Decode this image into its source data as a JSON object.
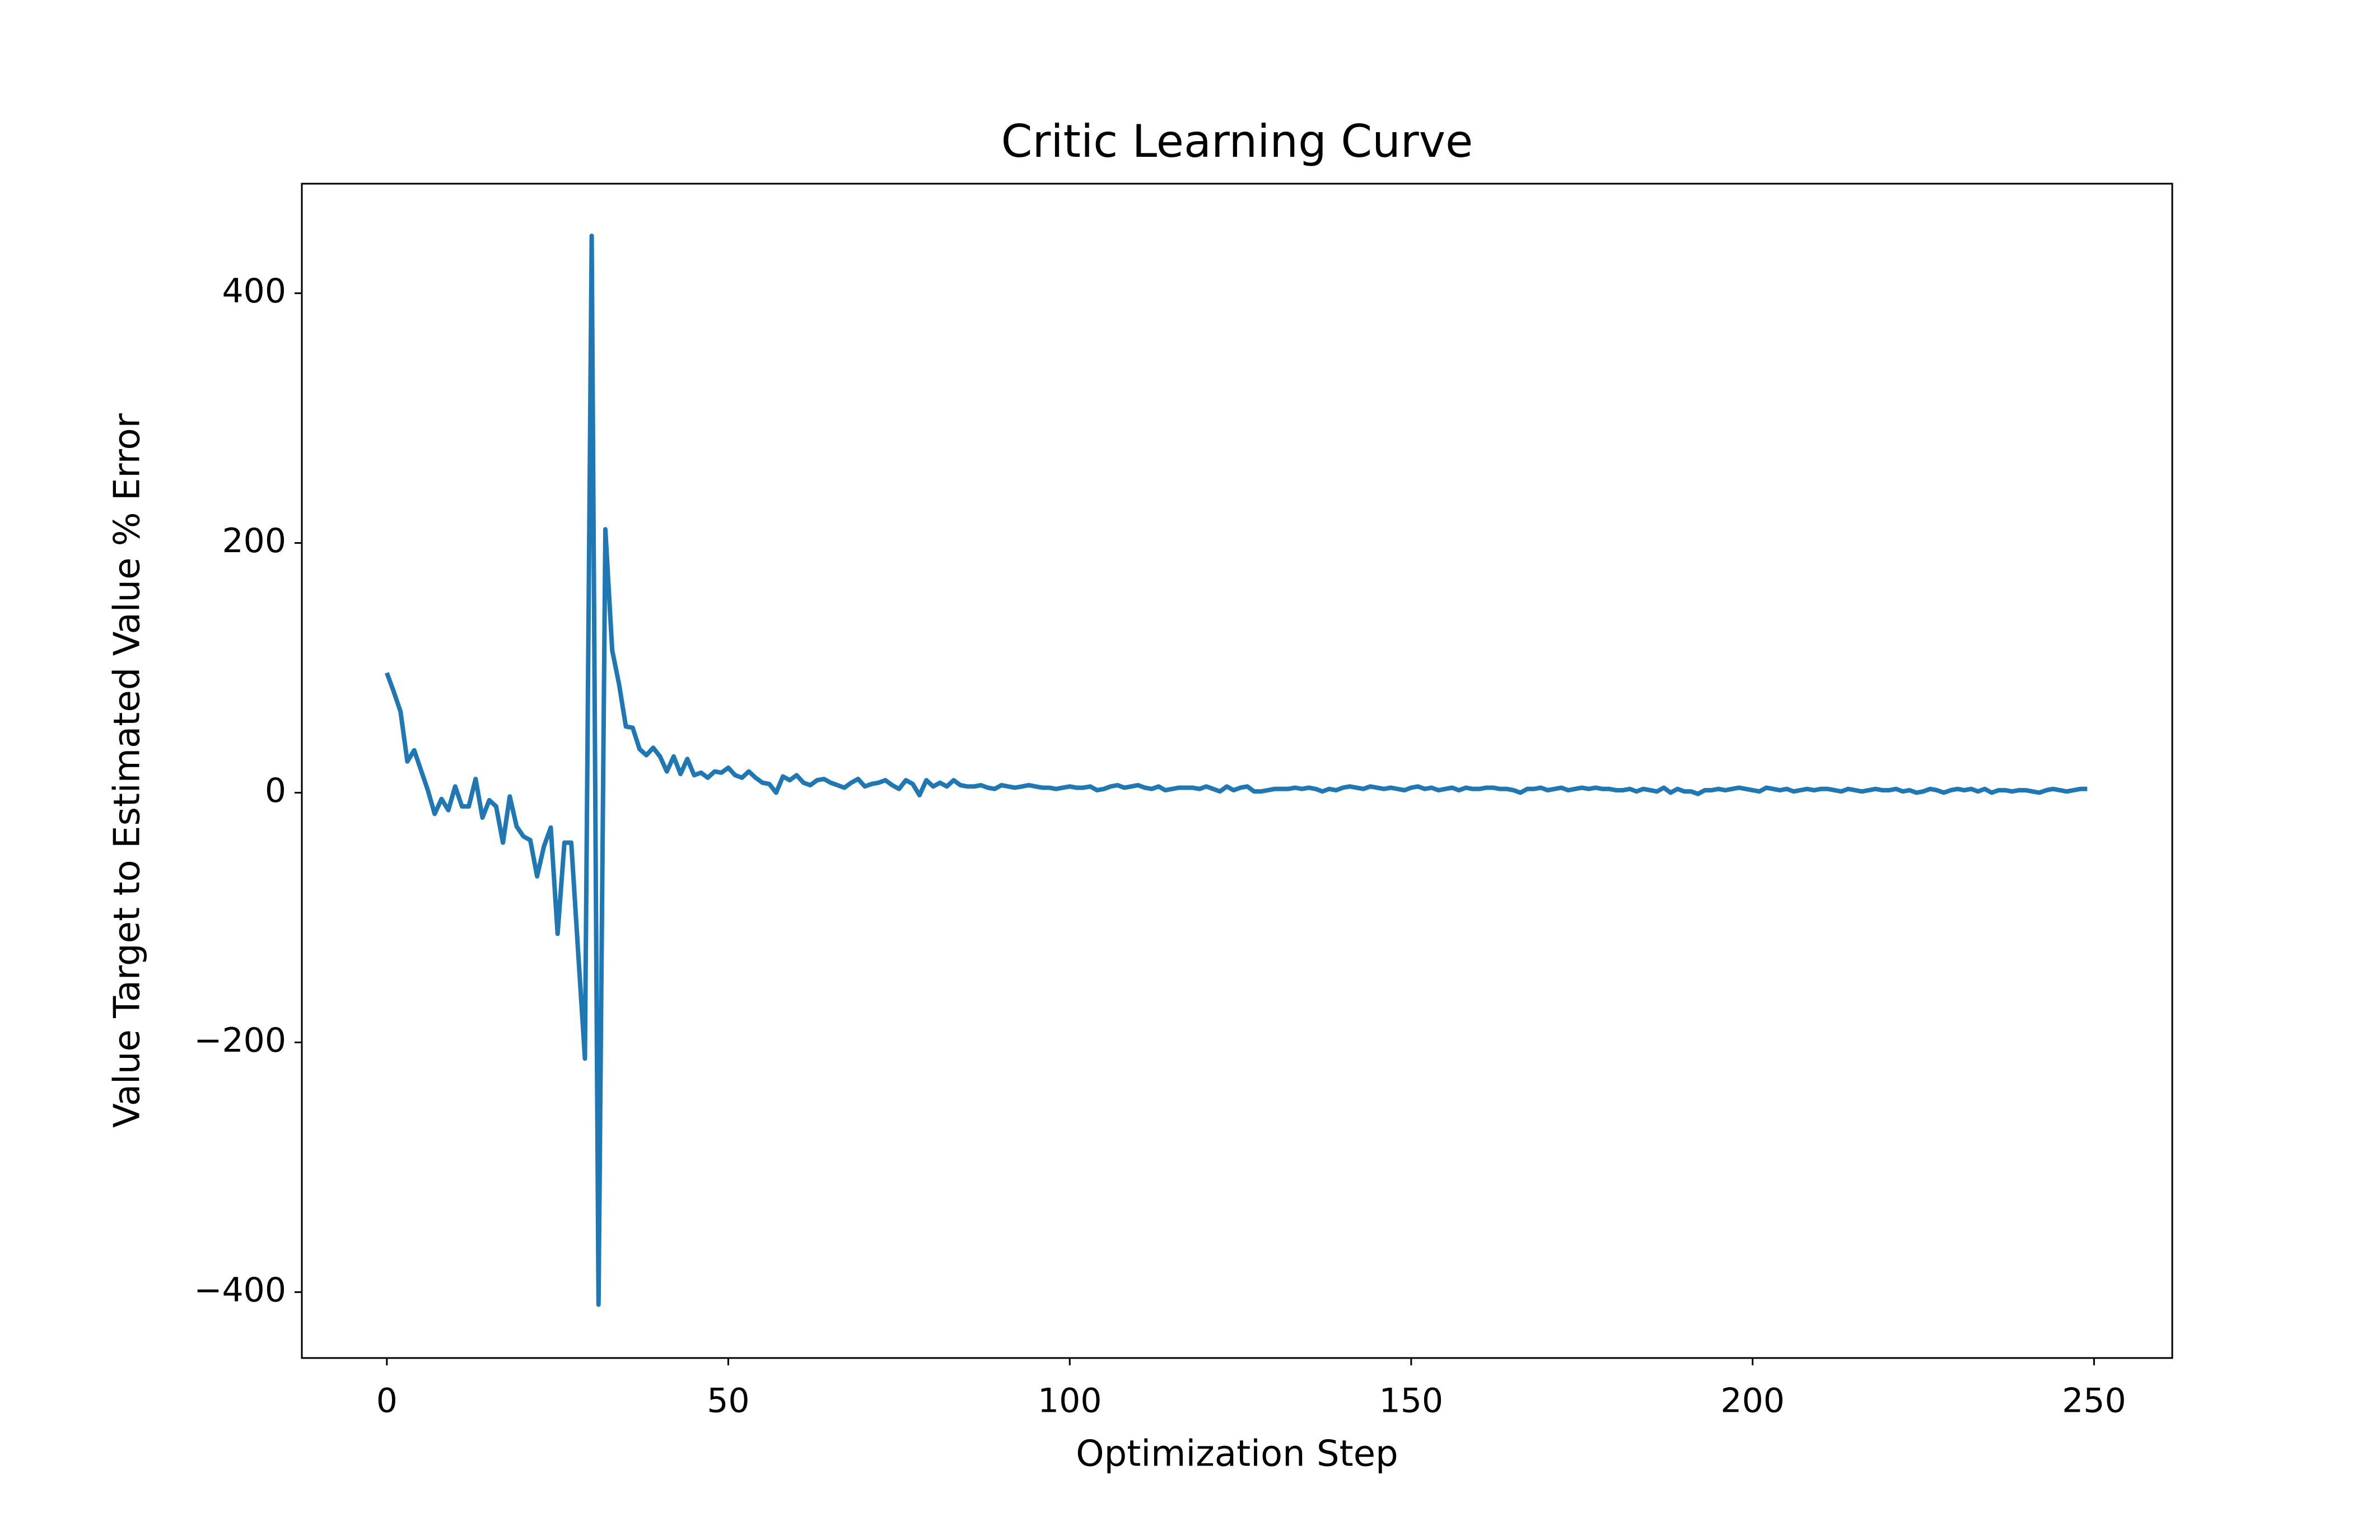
{
  "chart_data": {
    "type": "line",
    "title": "Critic Learning Curve",
    "x_label": "Optimization Step",
    "y_label": "Value Target to Estimated Value % Error",
    "x": [
      0,
      1,
      2,
      3,
      4,
      5,
      6,
      7,
      8,
      9,
      10,
      11,
      12,
      13,
      14,
      15,
      16,
      17,
      18,
      19,
      20,
      21,
      22,
      23,
      24,
      25,
      26,
      27,
      28,
      29,
      30,
      31,
      32,
      33,
      34,
      35,
      36,
      37,
      38,
      39,
      40,
      41,
      42,
      43,
      44,
      45,
      46,
      47,
      48,
      49,
      50,
      51,
      52,
      53,
      54,
      55,
      56,
      57,
      58,
      59,
      60,
      61,
      62,
      63,
      64,
      65,
      66,
      67,
      68,
      69,
      70,
      71,
      72,
      73,
      74,
      75,
      76,
      77,
      78,
      79,
      80,
      81,
      82,
      83,
      84,
      85,
      86,
      87,
      88,
      89,
      90,
      91,
      92,
      93,
      94,
      95,
      96,
      97,
      98,
      99,
      100,
      101,
      102,
      103,
      104,
      105,
      106,
      107,
      108,
      109,
      110,
      111,
      112,
      113,
      114,
      115,
      116,
      117,
      118,
      119,
      120,
      121,
      122,
      123,
      124,
      125,
      126,
      127,
      128,
      129,
      130,
      131,
      132,
      133,
      134,
      135,
      136,
      137,
      138,
      139,
      140,
      141,
      142,
      143,
      144,
      145,
      146,
      147,
      148,
      149,
      150,
      151,
      152,
      153,
      154,
      155,
      156,
      157,
      158,
      159,
      160,
      161,
      162,
      163,
      164,
      165,
      166,
      167,
      168,
      169,
      170,
      171,
      172,
      173,
      174,
      175,
      176,
      177,
      178,
      179,
      180,
      181,
      182,
      183,
      184,
      185,
      186,
      187,
      188,
      189,
      190,
      191,
      192,
      193,
      194,
      195,
      196,
      197,
      198,
      199,
      200,
      201,
      202,
      203,
      204,
      205,
      206,
      207,
      208,
      209,
      210,
      211,
      212,
      213,
      214,
      215,
      216,
      217,
      218,
      219,
      220,
      221,
      222,
      223,
      224,
      225,
      226,
      227,
      228,
      229,
      230,
      231,
      232,
      233,
      234,
      235,
      236,
      237,
      238,
      239,
      240,
      241,
      242,
      243,
      244,
      245,
      246,
      247,
      248,
      249
    ],
    "series": [
      {
        "color": "#1f77b4",
        "values": [
          96,
          81,
          65,
          25,
          34,
          18,
          2,
          -17,
          -5,
          -14,
          5,
          -11,
          -11,
          11,
          -20,
          -6,
          -11,
          -40,
          -3,
          -27,
          -35,
          -38,
          -67,
          -43,
          -28,
          -113,
          -40,
          -40,
          -127,
          -213,
          446,
          -410,
          211,
          114,
          87,
          53,
          52,
          35,
          30,
          36,
          29,
          17,
          29,
          15,
          27,
          14,
          16,
          12,
          17,
          16,
          20,
          14,
          12,
          17,
          12,
          8,
          7,
          0,
          13,
          10,
          14,
          8,
          6,
          10,
          11,
          8,
          6,
          4,
          8,
          11,
          5,
          7,
          8,
          10,
          6,
          3,
          10,
          7,
          -2,
          10,
          5,
          8,
          5,
          10,
          6,
          5,
          5,
          6,
          4,
          3,
          6,
          5,
          4,
          5,
          6,
          5,
          4,
          4,
          3,
          4,
          5,
          4,
          4,
          5,
          2,
          3,
          5,
          6,
          4,
          5,
          6,
          4,
          3,
          5,
          2,
          3,
          4,
          4,
          4,
          3,
          5,
          3,
          1,
          5,
          2,
          4,
          5,
          1,
          1,
          2,
          3,
          3,
          3,
          4,
          3,
          4,
          3,
          1,
          3,
          2,
          4,
          5,
          4,
          3,
          5,
          4,
          3,
          4,
          3,
          2,
          4,
          5,
          3,
          4,
          2,
          3,
          4,
          2,
          4,
          3,
          3,
          4,
          4,
          3,
          3,
          2,
          0,
          3,
          3,
          4,
          2,
          3,
          4,
          2,
          3,
          4,
          3,
          4,
          3,
          3,
          2,
          2,
          3,
          1,
          3,
          2,
          1,
          4,
          0,
          3,
          1,
          1,
          -1,
          2,
          2,
          3,
          2,
          3,
          4,
          3,
          2,
          1,
          4,
          3,
          2,
          3,
          1,
          2,
          3,
          2,
          3,
          3,
          2,
          1,
          3,
          2,
          1,
          2,
          3,
          2,
          2,
          3,
          1,
          2,
          0,
          1,
          3,
          2,
          0,
          2,
          3,
          2,
          3,
          1,
          3,
          0,
          2,
          2,
          1,
          2,
          2,
          1,
          0,
          2,
          3,
          2,
          1,
          2,
          3,
          3
        ]
      }
    ],
    "xlim": [
      -12.45,
      261.45
    ],
    "xticks": [
      0,
      50,
      100,
      150,
      200,
      250
    ],
    "ylim": [
      -452.75,
      487.75
    ],
    "yticks": [
      {
        "value": -400,
        "label": "−400"
      },
      {
        "value": -200,
        "label": "−200"
      },
      0,
      200,
      400
    ]
  }
}
